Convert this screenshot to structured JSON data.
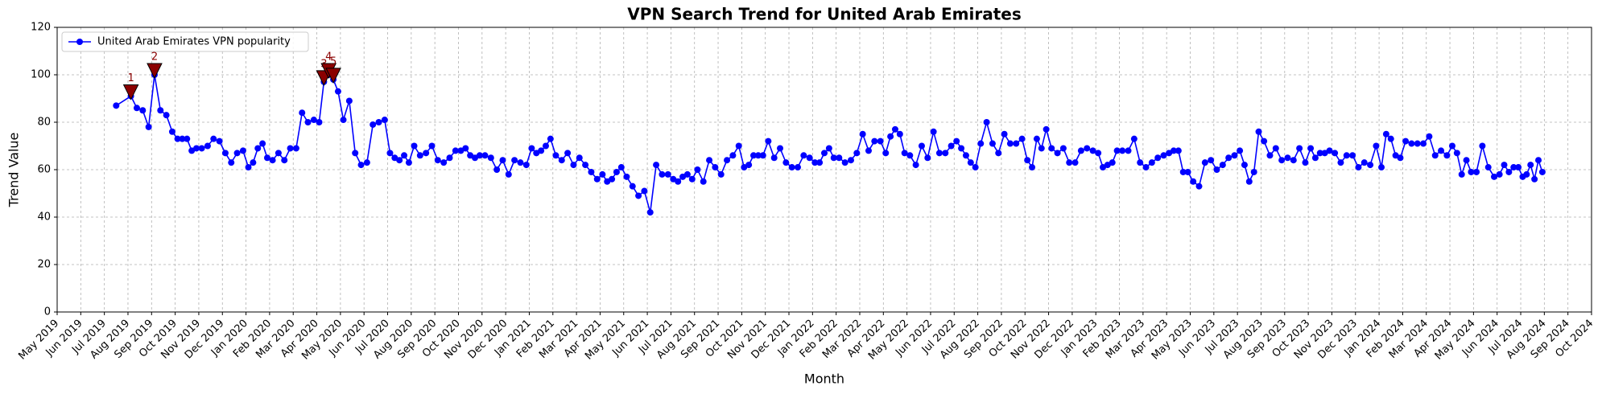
{
  "chart_data": {
    "type": "line",
    "title": "VPN Search Trend for United Arab Emirates",
    "x_label": "Month",
    "y_label": "Trend Value",
    "legend": "upper left",
    "grid": true,
    "ylim": [
      0,
      120
    ],
    "yticks": [
      0,
      20,
      40,
      60,
      80,
      100,
      120
    ],
    "xlim": [
      "2019-05",
      "2024-10"
    ],
    "xticks": [
      {
        "value": "2019-05",
        "label": "May 2019"
      },
      {
        "value": "2019-06",
        "label": "Jun 2019"
      },
      {
        "value": "2019-07",
        "label": "Jul 2019"
      },
      {
        "value": "2019-08",
        "label": "Aug 2019"
      },
      {
        "value": "2019-09",
        "label": "Sep 2019"
      },
      {
        "value": "2019-10",
        "label": "Oct 2019"
      },
      {
        "value": "2019-11",
        "label": "Nov 2019"
      },
      {
        "value": "2019-12",
        "label": "Dec 2019"
      },
      {
        "value": "2020-01",
        "label": "Jan 2020"
      },
      {
        "value": "2020-02",
        "label": "Feb 2020"
      },
      {
        "value": "2020-03",
        "label": "Mar 2020"
      },
      {
        "value": "2020-04",
        "label": "Apr 2020"
      },
      {
        "value": "2020-05",
        "label": "May 2020"
      },
      {
        "value": "2020-06",
        "label": "Jun 2020"
      },
      {
        "value": "2020-07",
        "label": "Jul 2020"
      },
      {
        "value": "2020-08",
        "label": "Aug 2020"
      },
      {
        "value": "2020-09",
        "label": "Sep 2020"
      },
      {
        "value": "2020-10",
        "label": "Oct 2020"
      },
      {
        "value": "2020-11",
        "label": "Nov 2020"
      },
      {
        "value": "2020-12",
        "label": "Dec 2020"
      },
      {
        "value": "2021-01",
        "label": "Jan 2021"
      },
      {
        "value": "2021-02",
        "label": "Feb 2021"
      },
      {
        "value": "2021-03",
        "label": "Mar 2021"
      },
      {
        "value": "2021-04",
        "label": "Apr 2021"
      },
      {
        "value": "2021-05",
        "label": "May 2021"
      },
      {
        "value": "2021-06",
        "label": "Jun 2021"
      },
      {
        "value": "2021-07",
        "label": "Jul 2021"
      },
      {
        "value": "2021-08",
        "label": "Aug 2021"
      },
      {
        "value": "2021-09",
        "label": "Sep 2021"
      },
      {
        "value": "2021-10",
        "label": "Oct 2021"
      },
      {
        "value": "2021-11",
        "label": "Nov 2021"
      },
      {
        "value": "2021-12",
        "label": "Dec 2021"
      },
      {
        "value": "2022-01",
        "label": "Jan 2022"
      },
      {
        "value": "2022-02",
        "label": "Feb 2022"
      },
      {
        "value": "2022-03",
        "label": "Mar 2022"
      },
      {
        "value": "2022-04",
        "label": "Apr 2022"
      },
      {
        "value": "2022-05",
        "label": "May 2022"
      },
      {
        "value": "2022-06",
        "label": "Jun 2022"
      },
      {
        "value": "2022-07",
        "label": "Jul 2022"
      },
      {
        "value": "2022-08",
        "label": "Aug 2022"
      },
      {
        "value": "2022-09",
        "label": "Sep 2022"
      },
      {
        "value": "2022-10",
        "label": "Oct 2022"
      },
      {
        "value": "2022-11",
        "label": "Nov 2022"
      },
      {
        "value": "2022-12",
        "label": "Dec 2022"
      },
      {
        "value": "2023-01",
        "label": "Jan 2023"
      },
      {
        "value": "2023-02",
        "label": "Feb 2023"
      },
      {
        "value": "2023-03",
        "label": "Mar 2023"
      },
      {
        "value": "2023-04",
        "label": "Apr 2023"
      },
      {
        "value": "2023-05",
        "label": "May 2023"
      },
      {
        "value": "2023-06",
        "label": "Jun 2023"
      },
      {
        "value": "2023-07",
        "label": "Jul 2023"
      },
      {
        "value": "2023-08",
        "label": "Aug 2023"
      },
      {
        "value": "2023-09",
        "label": "Sep 2023"
      },
      {
        "value": "2023-10",
        "label": "Oct 2023"
      },
      {
        "value": "2023-11",
        "label": "Nov 2023"
      },
      {
        "value": "2023-12",
        "label": "Dec 2023"
      },
      {
        "value": "2024-01",
        "label": "Jan 2024"
      },
      {
        "value": "2024-02",
        "label": "Feb 2024"
      },
      {
        "value": "2024-03",
        "label": "Mar 2024"
      },
      {
        "value": "2024-04",
        "label": "Apr 2024"
      },
      {
        "value": "2024-05",
        "label": "May 2024"
      },
      {
        "value": "2024-06",
        "label": "Jun 2024"
      },
      {
        "value": "2024-07",
        "label": "Jul 2024"
      },
      {
        "value": "2024-08",
        "label": "Aug 2024"
      },
      {
        "value": "2024-09",
        "label": "Sep 2024"
      },
      {
        "value": "2024-10",
        "label": "Oct 2024"
      }
    ],
    "x": [
      "2019-07",
      "2019-08",
      "2019-08",
      "2019-08",
      "2019-08",
      "2019-09",
      "2019-09",
      "2019-09",
      "2019-09",
      "2019-10",
      "2019-10",
      "2019-10",
      "2019-10",
      "2019-10",
      "2019-11",
      "2019-11",
      "2019-11",
      "2019-11",
      "2019-12",
      "2019-12",
      "2019-12",
      "2019-12",
      "2020-01",
      "2020-01",
      "2020-01",
      "2020-01",
      "2020-01",
      "2020-02",
      "2020-02",
      "2020-02",
      "2020-02",
      "2020-03",
      "2020-03",
      "2020-03",
      "2020-03",
      "2020-04",
      "2020-04",
      "2020-04",
      "2020-04",
      "2020-04",
      "2020-05",
      "2020-05",
      "2020-05",
      "2020-05",
      "2020-06",
      "2020-06",
      "2020-06",
      "2020-06",
      "2020-07",
      "2020-07",
      "2020-07",
      "2020-07",
      "2020-07",
      "2020-08",
      "2020-08",
      "2020-08",
      "2020-08",
      "2020-09",
      "2020-09",
      "2020-09",
      "2020-09",
      "2020-10",
      "2020-10",
      "2020-10",
      "2020-10",
      "2020-10",
      "2020-11",
      "2020-11",
      "2020-11",
      "2020-11",
      "2020-12",
      "2020-12",
      "2020-12",
      "2020-12",
      "2021-01",
      "2021-01",
      "2021-01",
      "2021-01",
      "2021-01",
      "2021-02",
      "2021-02",
      "2021-02",
      "2021-02",
      "2021-03",
      "2021-03",
      "2021-03",
      "2021-03",
      "2021-04",
      "2021-04",
      "2021-04",
      "2021-04",
      "2021-04",
      "2021-05",
      "2021-05",
      "2021-05",
      "2021-05",
      "2021-06",
      "2021-06",
      "2021-06",
      "2021-06",
      "2021-07",
      "2021-07",
      "2021-07",
      "2021-07",
      "2021-07",
      "2021-08",
      "2021-08",
      "2021-08",
      "2021-08",
      "2021-09",
      "2021-09",
      "2021-09",
      "2021-09",
      "2021-10",
      "2021-10",
      "2021-10",
      "2021-10",
      "2021-10",
      "2021-11",
      "2021-11",
      "2021-11",
      "2021-11",
      "2021-12",
      "2021-12",
      "2021-12",
      "2021-12",
      "2022-01",
      "2022-01",
      "2022-01",
      "2022-01",
      "2022-01",
      "2022-02",
      "2022-02",
      "2022-02",
      "2022-02",
      "2022-03",
      "2022-03",
      "2022-03",
      "2022-03",
      "2022-04",
      "2022-04",
      "2022-04",
      "2022-04",
      "2022-04",
      "2022-05",
      "2022-05",
      "2022-05",
      "2022-05",
      "2022-06",
      "2022-06",
      "2022-06",
      "2022-06",
      "2022-07",
      "2022-07",
      "2022-07",
      "2022-07",
      "2022-07",
      "2022-08",
      "2022-08",
      "2022-08",
      "2022-08",
      "2022-09",
      "2022-09",
      "2022-09",
      "2022-09",
      "2022-10",
      "2022-10",
      "2022-10",
      "2022-10",
      "2022-10",
      "2022-11",
      "2022-11",
      "2022-11",
      "2022-11",
      "2022-12",
      "2022-12",
      "2022-12",
      "2022-12",
      "2023-01",
      "2023-01",
      "2023-01",
      "2023-01",
      "2023-01",
      "2023-02",
      "2023-02",
      "2023-02",
      "2023-02",
      "2023-03",
      "2023-03",
      "2023-03",
      "2023-03",
      "2023-04",
      "2023-04",
      "2023-04",
      "2023-04",
      "2023-04",
      "2023-05",
      "2023-05",
      "2023-05",
      "2023-05",
      "2023-06",
      "2023-06",
      "2023-06",
      "2023-06",
      "2023-07",
      "2023-07",
      "2023-07",
      "2023-07",
      "2023-07",
      "2023-08",
      "2023-08",
      "2023-08",
      "2023-08",
      "2023-09",
      "2023-09",
      "2023-09",
      "2023-09",
      "2023-10",
      "2023-10",
      "2023-10",
      "2023-10",
      "2023-10",
      "2023-11",
      "2023-11",
      "2023-11",
      "2023-11",
      "2023-12",
      "2023-12",
      "2023-12",
      "2023-12",
      "2024-01",
      "2024-01",
      "2024-01",
      "2024-01",
      "2024-01",
      "2024-02",
      "2024-02",
      "2024-02",
      "2024-02",
      "2024-03",
      "2024-03",
      "2024-03",
      "2024-03",
      "2024-04",
      "2024-04",
      "2024-04",
      "2024-04",
      "2024-04",
      "2024-05",
      "2024-05",
      "2024-05",
      "2024-05",
      "2024-06",
      "2024-06",
      "2024-06",
      "2024-06",
      "2024-06",
      "2024-07",
      "2024-07",
      "2024-07",
      "2024-07",
      "2024-07",
      "2024-07"
    ],
    "series": [
      {
        "name": "United Arab Emirates VPN popularity",
        "color": "#0000ff",
        "values": [
          87,
          91,
          86,
          85,
          78,
          100,
          85,
          83,
          76,
          73,
          73,
          73,
          68,
          69,
          69,
          70,
          73,
          72,
          67,
          63,
          67,
          68,
          61,
          63,
          69,
          71,
          65,
          64,
          67,
          64,
          69,
          69,
          84,
          80,
          81,
          80,
          97,
          100,
          98,
          93,
          81,
          89,
          67,
          62,
          63,
          79,
          80,
          81,
          67,
          65,
          64,
          66,
          63,
          70,
          66,
          67,
          70,
          64,
          63,
          65,
          68,
          68,
          69,
          66,
          65,
          66,
          66,
          65,
          60,
          64,
          58,
          64,
          63,
          62,
          69,
          67,
          68,
          70,
          73,
          66,
          64,
          67,
          62,
          65,
          62,
          59,
          56,
          58,
          55,
          56,
          59,
          61,
          57,
          53,
          49,
          51,
          42,
          62,
          58,
          58,
          56,
          55,
          57,
          58,
          56,
          60,
          55,
          64,
          61,
          58,
          64,
          66,
          70,
          61,
          62,
          66,
          66,
          66,
          72,
          65,
          69,
          63,
          61,
          61,
          66,
          65,
          63,
          63,
          67,
          69,
          65,
          65,
          63,
          64,
          67,
          75,
          68,
          72,
          72,
          67,
          74,
          77,
          75,
          67,
          66,
          62,
          70,
          65,
          76,
          67,
          67,
          70,
          72,
          69,
          66,
          63,
          61,
          71,
          80,
          71,
          67,
          75,
          71,
          71,
          73,
          64,
          61,
          73,
          69,
          77,
          69,
          67,
          69,
          63,
          63,
          68,
          69,
          68,
          67,
          61,
          62,
          63,
          68,
          68,
          68,
          73,
          63,
          61,
          63,
          65,
          66,
          67,
          68,
          68,
          59,
          59,
          55,
          53,
          63,
          64,
          60,
          62,
          65,
          66,
          68,
          62,
          55,
          59,
          76,
          72,
          66,
          69,
          64,
          65,
          64,
          69,
          63,
          69,
          65,
          67,
          67,
          68,
          67,
          63,
          66,
          66,
          61,
          63,
          62,
          70,
          61,
          75,
          73,
          66,
          65,
          72,
          71,
          71,
          71,
          74,
          66,
          68,
          66,
          70,
          67,
          58,
          64,
          59,
          59,
          70,
          61,
          57,
          58,
          62,
          59,
          61,
          61,
          57,
          58,
          62,
          56,
          64,
          59
        ]
      }
    ],
    "annotations": [
      {
        "label": "1",
        "x": "2019-08",
        "value": 91,
        "color": "#8b0000"
      },
      {
        "label": "2",
        "x": "2019-09",
        "value": 100,
        "color": "#8b0000"
      },
      {
        "label": "3",
        "x": "2020-04",
        "value": 97,
        "color": "#8b0000"
      },
      {
        "label": "4",
        "x": "2020-04",
        "value": 100,
        "color": "#8b0000"
      },
      {
        "label": "5",
        "x": "2020-04",
        "value": 98,
        "color": "#8b0000"
      }
    ]
  }
}
